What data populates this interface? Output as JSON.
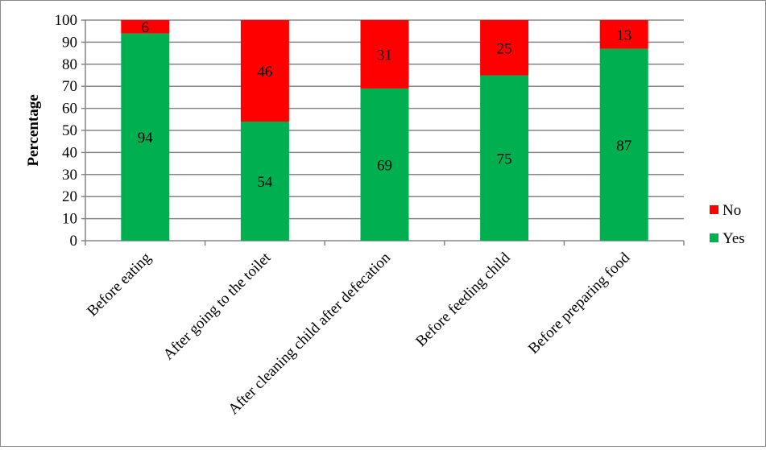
{
  "chart_data": {
    "type": "bar",
    "stacked": true,
    "title": "",
    "xlabel": "",
    "ylabel": "Percentage",
    "ylim": [
      0,
      100
    ],
    "yticks": [
      0,
      10,
      20,
      30,
      40,
      50,
      60,
      70,
      80,
      90,
      100
    ],
    "grid": true,
    "legend_placement": "right",
    "categories": [
      "Before eating",
      "After going to the toilet",
      "After cleaning child after defecation",
      "Before feeding child",
      "Before preparing food"
    ],
    "series": [
      {
        "name": "Yes",
        "color": "#00B050",
        "values": [
          94,
          54,
          69,
          75,
          87
        ]
      },
      {
        "name": "No",
        "color": "#FF0000",
        "values": [
          6,
          46,
          31,
          25,
          13
        ]
      }
    ]
  }
}
